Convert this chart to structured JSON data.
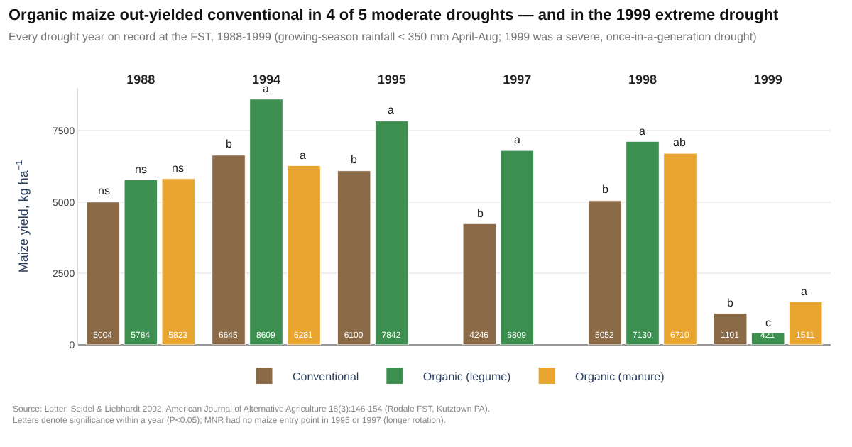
{
  "chart_data": {
    "type": "bar",
    "title": "Organic maize out-yielded conventional in 4 of 5 moderate droughts — and in the 1999 extreme drought",
    "subtitle": "Every drought year on record at the FST, 1988-1999 (growing-season rainfall < 350 mm April-Aug; 1999 was a severe, once-in-a-generation drought)",
    "ylabel": "Maize yield, kg ha$^{−1}$",
    "categories": [
      "1988",
      "1994",
      "1995",
      "1997",
      "1998",
      "1999"
    ],
    "series": [
      {
        "name": "Conventional",
        "color": "#8b6a47",
        "values": [
          5004,
          6645,
          6100,
          4246,
          5052,
          1101
        ]
      },
      {
        "name": "Organic (legume)",
        "color": "#3d8f4f",
        "values": [
          5784,
          8609,
          7842,
          6809,
          7130,
          421
        ]
      },
      {
        "name": "Organic (manure)",
        "color": "#e8a631",
        "values": [
          5823,
          6281,
          null,
          null,
          6710,
          1511
        ]
      }
    ],
    "ylim": [
      0,
      9000
    ],
    "yticks": [
      0,
      2500,
      5000,
      7500
    ],
    "grid": "y",
    "legend": "bottom",
    "data_labels": true,
    "annotations": [
      "ns",
      "ns",
      "ns",
      "b",
      "a",
      "a",
      "b",
      "a",
      "b",
      "a",
      "b",
      "a",
      "ab",
      "b",
      "c",
      "a",
      "Source: Lotter, Seidel & Liebhardt 2002, American Journal of Alternative Agriculture 18(3):146-154 (Rodale FST, Kutztown PA).",
      "Letters denote significance within a year (P<0.05); MNR had no maize entry point in 1995 or 1997 (longer rotation)."
    ]
  }
}
